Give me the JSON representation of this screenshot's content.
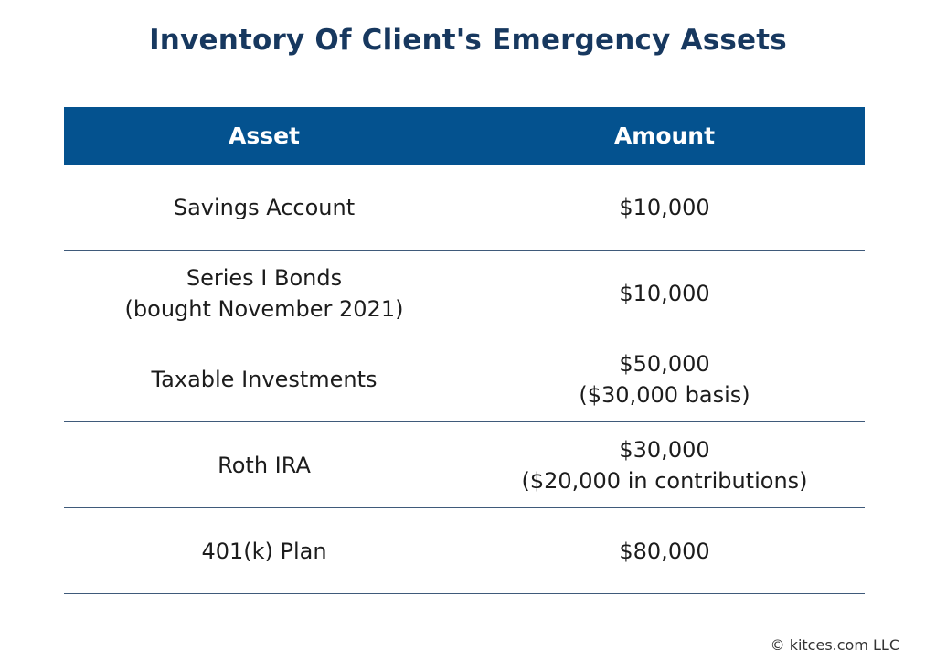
{
  "title": "Inventory Of Client's Emergency Assets",
  "table": {
    "headers": {
      "asset": "Asset",
      "amount": "Amount"
    },
    "rows": [
      {
        "asset_line1": "Savings Account",
        "asset_line2": "",
        "amount_line1": "$10,000",
        "amount_line2": ""
      },
      {
        "asset_line1": "Series I Bonds",
        "asset_line2": "(bought November 2021)",
        "amount_line1": "$10,000",
        "amount_line2": ""
      },
      {
        "asset_line1": "Taxable Investments",
        "asset_line2": "",
        "amount_line1": "$50,000",
        "amount_line2": "($30,000 basis)"
      },
      {
        "asset_line1": "Roth IRA",
        "asset_line2": "",
        "amount_line1": "$30,000",
        "amount_line2": "($20,000 in contributions)"
      },
      {
        "asset_line1": "401(k) Plan",
        "asset_line2": "",
        "amount_line1": "$80,000",
        "amount_line2": ""
      }
    ]
  },
  "footer": "© kitces.com LLC",
  "colors": {
    "title": "#17385f",
    "header_bg": "#04528f",
    "header_text": "#ffffff",
    "row_divider": "#3f5a7a"
  }
}
